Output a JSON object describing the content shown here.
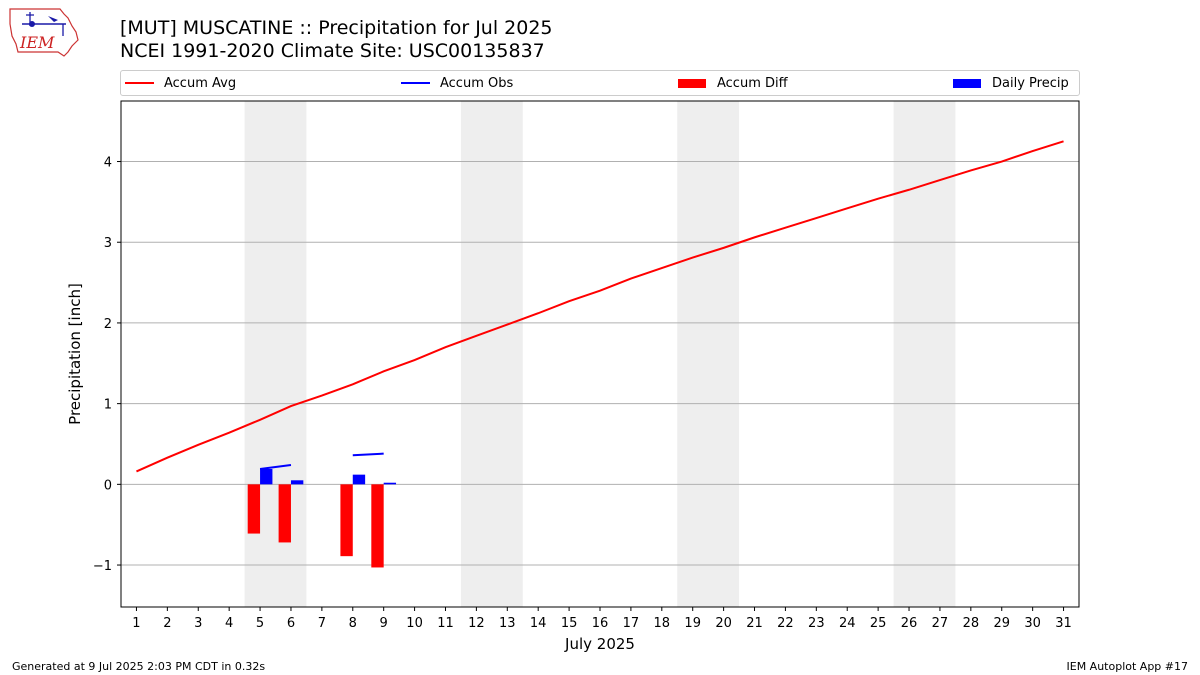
{
  "header": {
    "logo_text": "IEM",
    "title_line1": "[MUT] MUSCATINE :: Precipitation for Jul 2025",
    "title_line2": "NCEI 1991-2020 Climate Site: USC00135837"
  },
  "legend": {
    "items": [
      {
        "label": "Accum Avg",
        "kind": "line",
        "color": "#ff0000"
      },
      {
        "label": "Accum Obs",
        "kind": "line",
        "color": "#0000ff"
      },
      {
        "label": "Accum Diff",
        "kind": "patch",
        "color": "#ff0000"
      },
      {
        "label": "Daily Precip",
        "kind": "patch",
        "color": "#0000ff"
      }
    ]
  },
  "footer": {
    "left": "Generated at 9 Jul 2025 2:03 PM CDT in 0.32s",
    "right": "IEM Autoplot App #17"
  },
  "chart_data": {
    "type": "line",
    "title": "[MUT] MUSCATINE :: Precipitation for Jul 2025",
    "subtitle": "NCEI 1991-2020 Climate Site: USC00135837",
    "xlabel": "July 2025",
    "ylabel": "Precipitation [inch]",
    "xlim": [
      0.5,
      31.5
    ],
    "ylim": [
      -1.52,
      4.75
    ],
    "x_ticks": [
      1,
      2,
      3,
      4,
      5,
      6,
      7,
      8,
      9,
      10,
      11,
      12,
      13,
      14,
      15,
      16,
      17,
      18,
      19,
      20,
      21,
      22,
      23,
      24,
      25,
      26,
      27,
      28,
      29,
      30,
      31
    ],
    "y_ticks": [
      -1,
      0,
      1,
      2,
      3,
      4
    ],
    "y_tick_labels": [
      "−1",
      "0",
      "1",
      "2",
      "3",
      "4"
    ],
    "grid": "horizontal",
    "legend_position": "top",
    "weekend_bands": [
      [
        4.5,
        6.5
      ],
      [
        11.5,
        13.5
      ],
      [
        18.5,
        20.5
      ],
      [
        25.5,
        27.5
      ]
    ],
    "series": [
      {
        "name": "Accum Avg",
        "kind": "line",
        "color": "#ff0000",
        "x": [
          1,
          2,
          3,
          4,
          5,
          6,
          7,
          8,
          9,
          10,
          11,
          12,
          13,
          14,
          15,
          16,
          17,
          18,
          19,
          20,
          21,
          22,
          23,
          24,
          25,
          26,
          27,
          28,
          29,
          30,
          31
        ],
        "values": [
          0.16,
          0.33,
          0.49,
          0.64,
          0.8,
          0.97,
          1.1,
          1.24,
          1.4,
          1.54,
          1.7,
          1.84,
          1.98,
          2.12,
          2.27,
          2.4,
          2.55,
          2.68,
          2.81,
          2.93,
          3.06,
          3.18,
          3.3,
          3.42,
          3.54,
          3.65,
          3.77,
          3.89,
          4.0,
          4.13,
          4.25
        ]
      },
      {
        "name": "Accum Obs",
        "kind": "line",
        "color": "#0000ff",
        "segments": [
          {
            "x": [
              5,
              6
            ],
            "values": [
              0.19,
              0.24
            ]
          },
          {
            "x": [
              8,
              9
            ],
            "values": [
              0.36,
              0.38
            ]
          }
        ]
      },
      {
        "name": "Accum Diff",
        "kind": "bar",
        "color": "#ff0000",
        "x": [
          5,
          6,
          8,
          9
        ],
        "values": [
          -0.61,
          -0.72,
          -0.89,
          -1.03
        ]
      },
      {
        "name": "Daily Precip",
        "kind": "bar",
        "color": "#0000ff",
        "x": [
          5,
          6,
          8,
          9
        ],
        "values": [
          0.19,
          0.05,
          0.12,
          0.02
        ]
      }
    ]
  }
}
